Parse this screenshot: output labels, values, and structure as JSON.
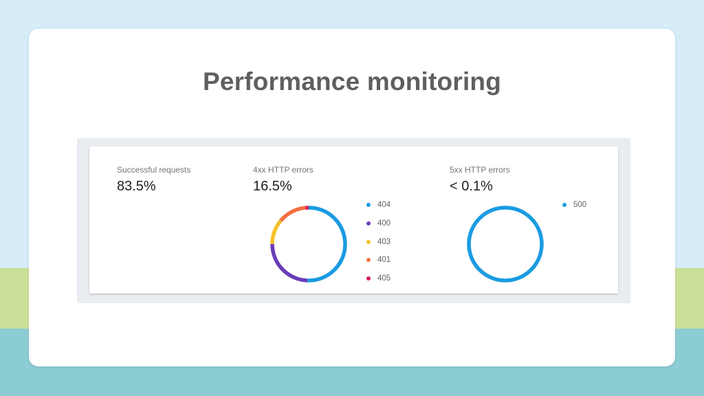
{
  "title": "Performance monitoring",
  "metrics": {
    "successful": {
      "label": "Successful requests",
      "value": "83.5%"
    },
    "errors_4xx": {
      "label": "4xx HTTP errors",
      "value": "16.5%",
      "legend": [
        {
          "code": "404",
          "color": "#1a9be2",
          "share": 0.505
        },
        {
          "code": "400",
          "color": "#6a3db8",
          "share": 0.245
        },
        {
          "code": "403",
          "color": "#f5c02a",
          "share": 0.11
        },
        {
          "code": "401",
          "color": "#f36e3f",
          "share": 0.125
        },
        {
          "code": "405",
          "color": "#d81b60",
          "share": 0.015
        }
      ]
    },
    "errors_5xx": {
      "label": "5xx HTTP errors",
      "value": "< 0.1%",
      "legend": [
        {
          "code": "500",
          "color": "#1a9be2",
          "share": 1.0
        }
      ]
    }
  },
  "colors": {
    "background_sky": "#d6ecf7",
    "background_green": "#c9df97",
    "background_teal": "#8ccdd3",
    "title_text": "#5f5f5f"
  }
}
